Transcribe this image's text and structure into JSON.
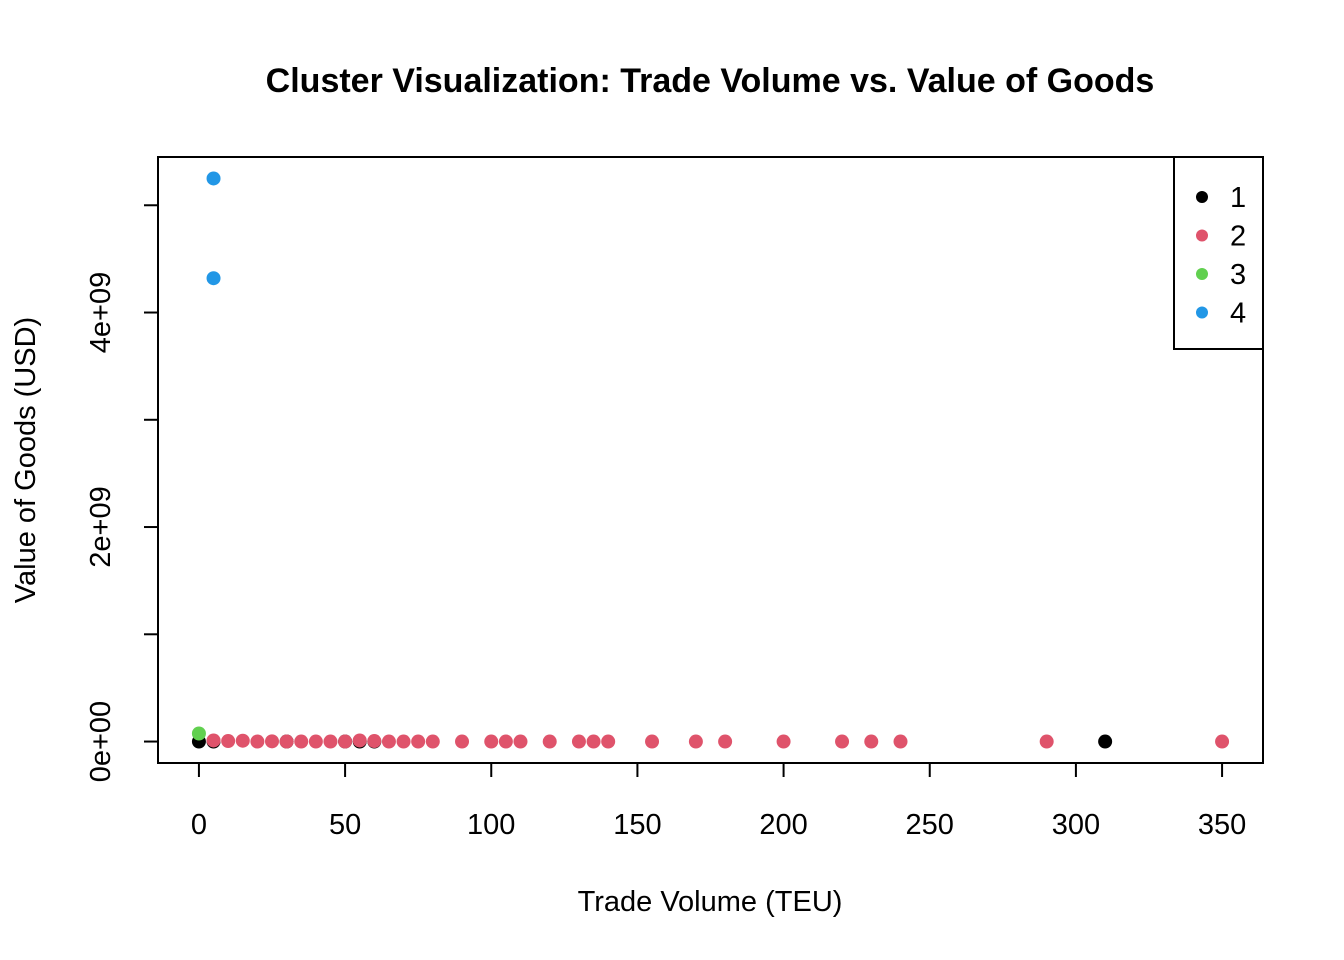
{
  "chart_data": {
    "type": "scatter",
    "title": "Cluster Visualization: Trade Volume vs. Value of Goods",
    "xlabel": "Trade Volume (TEU)",
    "ylabel": "Value of Goods (USD)",
    "xlim": [
      -14,
      364
    ],
    "ylim": [
      -200000000,
      5450000000
    ],
    "x_ticks": [
      0,
      50,
      100,
      150,
      200,
      250,
      300,
      350
    ],
    "x_tick_labels": [
      "0",
      "50",
      "100",
      "150",
      "200",
      "250",
      "300",
      "350"
    ],
    "y_ticks": [
      0,
      1000000000,
      2000000000,
      3000000000,
      4000000000,
      5000000000
    ],
    "y_tick_labels": [
      "0e+00",
      "",
      "2e+09",
      "",
      "4e+09",
      ""
    ],
    "grid": false,
    "legend_position": "top-right",
    "series": [
      {
        "name": "1",
        "color": "#000000",
        "x": [
          0,
          5,
          30,
          50,
          55,
          60,
          310
        ],
        "y": [
          0,
          0,
          0,
          0,
          0,
          0,
          0
        ]
      },
      {
        "name": "2",
        "color": "#DF536B",
        "x": [
          5,
          10,
          15,
          20,
          25,
          30,
          35,
          40,
          45,
          50,
          55,
          60,
          65,
          70,
          75,
          80,
          90,
          100,
          105,
          110,
          120,
          130,
          135,
          140,
          155,
          170,
          180,
          200,
          220,
          230,
          240,
          290,
          350
        ],
        "y": [
          10000000,
          5000000,
          8000000,
          0,
          2000000,
          0,
          0,
          0,
          0,
          0,
          10000000,
          5000000,
          0,
          0,
          0,
          0,
          0,
          0,
          0,
          0,
          0,
          0,
          0,
          0,
          0,
          0,
          0,
          0,
          0,
          0,
          0,
          0,
          0
        ]
      },
      {
        "name": "3",
        "color": "#61D04F",
        "x": [
          0
        ],
        "y": [
          75000000
        ]
      },
      {
        "name": "4",
        "color": "#2297E6",
        "x": [
          5,
          5
        ],
        "y": [
          5250000000,
          4320000000
        ]
      }
    ]
  }
}
